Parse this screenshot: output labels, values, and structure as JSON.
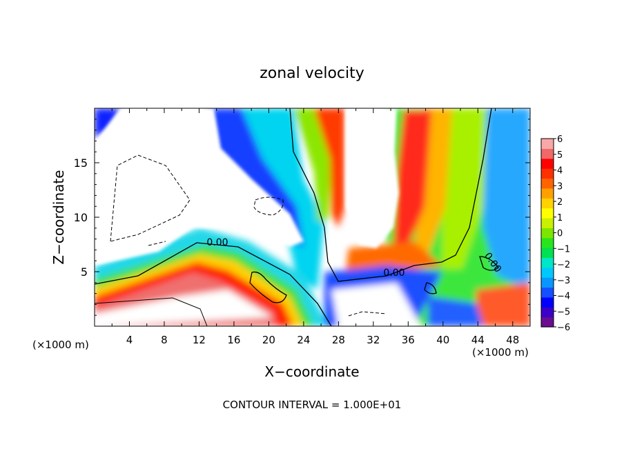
{
  "chart_data": {
    "type": "heatmap",
    "title": "zonal velocity",
    "xlabel": "X−coordinate",
    "ylabel": "Z−coordinate",
    "x_unit_left": "(×1000 m)",
    "x_unit_right": "(×1000 m)",
    "xlim": [
      0,
      50
    ],
    "ylim": [
      0,
      20
    ],
    "x_ticks": [
      4,
      8,
      12,
      16,
      20,
      24,
      28,
      32,
      36,
      40,
      44,
      48
    ],
    "x_tick_labels": [
      "4",
      "8",
      "12",
      "16",
      "20",
      "24",
      "28",
      "32",
      "36",
      "40",
      "44",
      "48"
    ],
    "y_ticks": [
      5,
      10,
      15
    ],
    "y_tick_labels": [
      "5",
      "10",
      "15"
    ],
    "colorbar": {
      "min": -6,
      "max": 6,
      "ticks": [
        6,
        5,
        4,
        3,
        2,
        1,
        0,
        -1,
        -2,
        -3,
        -4,
        -5,
        -6
      ],
      "tick_labels": [
        "6",
        "5",
        "4",
        "3",
        "2",
        "1",
        "0",
        "−1",
        "−2",
        "−3",
        "−4",
        "−5",
        "−6"
      ],
      "colors": [
        "#6a0d8f",
        "#3b00c8",
        "#0000ff",
        "#1450ff",
        "#0a96ff",
        "#00c8ff",
        "#00e6c8",
        "#00e050",
        "#28e61e",
        "#7ce600",
        "#c8f000",
        "#ffff00",
        "#ffd200",
        "#ffa000",
        "#ff6400",
        "#ff3000",
        "#ff0000",
        "#f06868",
        "#f8a8a8"
      ]
    },
    "contour_labels": [
      "0.00",
      "0.00",
      "0.00"
    ],
    "footer": "CONTOUR INTERVAL = 1.000E+01"
  }
}
